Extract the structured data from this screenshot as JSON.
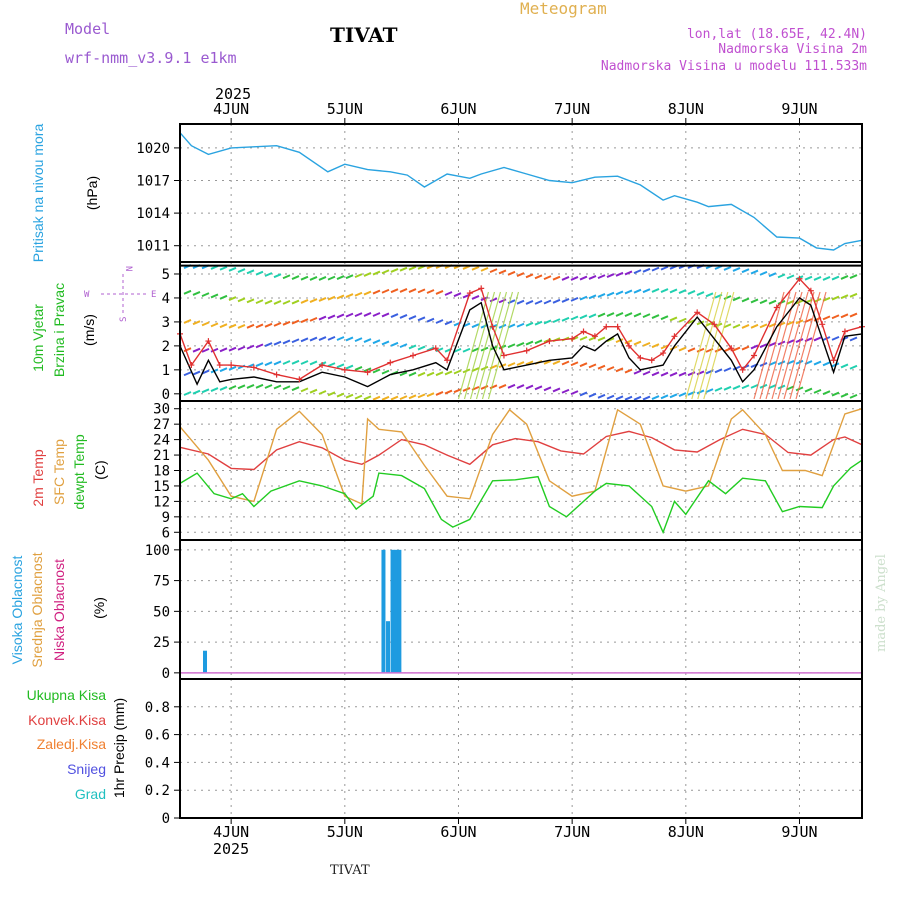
{
  "header": {
    "model_label": "Model",
    "model_name": "wrf-nmm_v3.9.1 e1km",
    "station": "TIVAT",
    "meteogram": "Meteogram",
    "lonlat": "lon,lat (18.65E, 42.4N)",
    "elevation": "Nadmorska Visina 2m",
    "model_elevation": "Nadmorska Visina u modelu 111.533m",
    "footer_station": "TIVAT",
    "watermark": "made by Angel"
  },
  "time_axis": {
    "year": "2025",
    "labels": [
      "4JUN",
      "5JUN",
      "6JUN",
      "7JUN",
      "8JUN",
      "9JUN"
    ],
    "start_day": 3.55,
    "end_day": 9.55
  },
  "colors": {
    "pressure": "#2aa3e0",
    "wind_speed": "#000000",
    "gust": "#e03030",
    "temp2m": "#e04040",
    "sfc_temp": "#e0a040",
    "dewpoint": "#22cc22",
    "high_cloud": "#1e9be0"
  },
  "chart_data": [
    {
      "type": "line",
      "panel": "pressure",
      "title_lines": [
        "Pritisak na nivou mora",
        "(hPa)"
      ],
      "ylim": [
        1009.5,
        1022.2
      ],
      "yticks": [
        "1020",
        "1017",
        "1014",
        "1011"
      ],
      "series": [
        {
          "values": [
            [
              3.55,
              1021.4
            ],
            [
              3.65,
              1020.2
            ],
            [
              3.8,
              1019.4
            ],
            [
              4.0,
              1020.0
            ],
            [
              4.2,
              1020.1
            ],
            [
              4.4,
              1020.2
            ],
            [
              4.6,
              1019.6
            ],
            [
              4.85,
              1017.8
            ],
            [
              5.0,
              1018.5
            ],
            [
              5.2,
              1018.0
            ],
            [
              5.4,
              1017.8
            ],
            [
              5.55,
              1017.5
            ],
            [
              5.7,
              1016.4
            ],
            [
              5.9,
              1017.6
            ],
            [
              6.1,
              1017.2
            ],
            [
              6.2,
              1017.6
            ],
            [
              6.4,
              1018.2
            ],
            [
              6.6,
              1017.6
            ],
            [
              6.8,
              1017.0
            ],
            [
              7.0,
              1016.8
            ],
            [
              7.2,
              1017.3
            ],
            [
              7.4,
              1017.4
            ],
            [
              7.6,
              1016.6
            ],
            [
              7.8,
              1015.2
            ],
            [
              7.9,
              1015.6
            ],
            [
              8.1,
              1015.0
            ],
            [
              8.2,
              1014.6
            ],
            [
              8.4,
              1014.8
            ],
            [
              8.6,
              1013.6
            ],
            [
              8.8,
              1011.8
            ],
            [
              9.0,
              1011.7
            ],
            [
              9.15,
              1010.8
            ],
            [
              9.3,
              1010.6
            ],
            [
              9.4,
              1011.2
            ],
            [
              9.55,
              1011.5
            ]
          ]
        }
      ]
    },
    {
      "type": "line",
      "panel": "wind",
      "title_lines": [
        "10m Vjetar",
        "Brzina i Pravac",
        "(m/s)"
      ],
      "compass": {
        "n": "N",
        "s": "S",
        "e": "E",
        "w": "W"
      },
      "ylim": [
        -0.3,
        5.5
      ],
      "yticks": [
        "5",
        "4",
        "3",
        "2",
        "1",
        "0"
      ],
      "series": [
        {
          "values": [
            [
              3.55,
              2.0
            ],
            [
              3.7,
              0.4
            ],
            [
              3.8,
              1.4
            ],
            [
              3.9,
              0.5
            ],
            [
              4.0,
              0.6
            ],
            [
              4.2,
              0.7
            ],
            [
              4.4,
              0.5
            ],
            [
              4.6,
              0.5
            ],
            [
              4.8,
              0.9
            ],
            [
              5.0,
              0.7
            ],
            [
              5.2,
              0.3
            ],
            [
              5.4,
              0.8
            ],
            [
              5.6,
              1.0
            ],
            [
              5.8,
              1.3
            ],
            [
              5.9,
              1.0
            ],
            [
              6.1,
              3.5
            ],
            [
              6.2,
              3.8
            ],
            [
              6.3,
              2.0
            ],
            [
              6.4,
              1.0
            ],
            [
              6.6,
              1.2
            ],
            [
              6.8,
              1.4
            ],
            [
              7.0,
              1.5
            ],
            [
              7.1,
              2.0
            ],
            [
              7.2,
              1.8
            ],
            [
              7.3,
              2.2
            ],
            [
              7.4,
              2.5
            ],
            [
              7.5,
              1.5
            ],
            [
              7.6,
              1.0
            ],
            [
              7.7,
              1.1
            ],
            [
              7.8,
              1.2
            ],
            [
              7.9,
              2.0
            ],
            [
              8.1,
              3.2
            ],
            [
              8.25,
              2.3
            ],
            [
              8.4,
              1.4
            ],
            [
              8.5,
              0.5
            ],
            [
              8.6,
              1.0
            ],
            [
              8.8,
              2.8
            ],
            [
              9.0,
              4.0
            ],
            [
              9.1,
              3.7
            ],
            [
              9.2,
              2.3
            ],
            [
              9.3,
              0.9
            ],
            [
              9.4,
              2.4
            ],
            [
              9.55,
              2.5
            ]
          ]
        },
        {
          "values": [
            [
              3.55,
              2.5
            ],
            [
              3.65,
              1.2
            ],
            [
              3.8,
              2.2
            ],
            [
              3.9,
              1.2
            ],
            [
              4.0,
              1.2
            ],
            [
              4.2,
              1.1
            ],
            [
              4.4,
              0.8
            ],
            [
              4.6,
              0.6
            ],
            [
              4.8,
              1.2
            ],
            [
              5.0,
              1.0
            ],
            [
              5.2,
              0.9
            ],
            [
              5.4,
              1.3
            ],
            [
              5.6,
              1.6
            ],
            [
              5.8,
              1.9
            ],
            [
              5.9,
              1.4
            ],
            [
              6.1,
              4.2
            ],
            [
              6.2,
              4.4
            ],
            [
              6.3,
              2.8
            ],
            [
              6.4,
              1.6
            ],
            [
              6.6,
              1.8
            ],
            [
              6.8,
              2.2
            ],
            [
              7.0,
              2.3
            ],
            [
              7.1,
              2.6
            ],
            [
              7.2,
              2.4
            ],
            [
              7.3,
              2.8
            ],
            [
              7.4,
              2.8
            ],
            [
              7.5,
              2.0
            ],
            [
              7.6,
              1.5
            ],
            [
              7.7,
              1.4
            ],
            [
              7.8,
              1.7
            ],
            [
              7.9,
              2.4
            ],
            [
              8.1,
              3.4
            ],
            [
              8.25,
              2.9
            ],
            [
              8.4,
              1.9
            ],
            [
              8.5,
              1.0
            ],
            [
              8.6,
              1.6
            ],
            [
              8.8,
              3.6
            ],
            [
              9.0,
              4.8
            ],
            [
              9.1,
              4.3
            ],
            [
              9.2,
              2.9
            ],
            [
              9.3,
              1.4
            ],
            [
              9.4,
              2.6
            ],
            [
              9.55,
              2.8
            ]
          ]
        }
      ]
    },
    {
      "type": "line",
      "panel": "temperature",
      "title_lines": [
        "2m Temp",
        "SFC Temp",
        "dewpt Temp",
        "(C)"
      ],
      "ylim": [
        4.5,
        31.5
      ],
      "yticks": [
        "30",
        "27",
        "24",
        "21",
        "18",
        "15",
        "12",
        "9",
        "6"
      ],
      "series": [
        {
          "values": [
            [
              3.55,
              22.5
            ],
            [
              3.8,
              21.2
            ],
            [
              4.0,
              18.4
            ],
            [
              4.2,
              18.2
            ],
            [
              4.4,
              22.0
            ],
            [
              4.6,
              23.6
            ],
            [
              4.8,
              22.4
            ],
            [
              5.0,
              20.0
            ],
            [
              5.15,
              19.2
            ],
            [
              5.3,
              21.0
            ],
            [
              5.5,
              24.0
            ],
            [
              5.7,
              23.0
            ],
            [
              5.9,
              21.0
            ],
            [
              6.1,
              19.2
            ],
            [
              6.3,
              23.0
            ],
            [
              6.5,
              24.2
            ],
            [
              6.7,
              23.6
            ],
            [
              6.9,
              21.8
            ],
            [
              7.1,
              21.2
            ],
            [
              7.3,
              24.6
            ],
            [
              7.5,
              25.6
            ],
            [
              7.7,
              24.4
            ],
            [
              7.9,
              22.0
            ],
            [
              8.1,
              21.6
            ],
            [
              8.3,
              24.0
            ],
            [
              8.5,
              26.0
            ],
            [
              8.7,
              25.0
            ],
            [
              8.9,
              21.5
            ],
            [
              9.1,
              21.0
            ],
            [
              9.3,
              24.0
            ],
            [
              9.4,
              24.5
            ],
            [
              9.55,
              23.0
            ]
          ]
        },
        {
          "values": [
            [
              3.55,
              26.5
            ],
            [
              3.8,
              20.0
            ],
            [
              4.0,
              13.0
            ],
            [
              4.2,
              12.0
            ],
            [
              4.4,
              26.0
            ],
            [
              4.6,
              29.5
            ],
            [
              4.8,
              25.0
            ],
            [
              5.0,
              13.0
            ],
            [
              5.15,
              11.5
            ],
            [
              5.2,
              28.0
            ],
            [
              5.3,
              26.0
            ],
            [
              5.5,
              25.5
            ],
            [
              5.7,
              19.0
            ],
            [
              5.9,
              13.0
            ],
            [
              6.1,
              12.5
            ],
            [
              6.3,
              25.0
            ],
            [
              6.45,
              29.8
            ],
            [
              6.6,
              27.0
            ],
            [
              6.8,
              16.0
            ],
            [
              7.0,
              13.0
            ],
            [
              7.2,
              14.0
            ],
            [
              7.4,
              29.8
            ],
            [
              7.6,
              27.0
            ],
            [
              7.8,
              15.0
            ],
            [
              8.0,
              14.0
            ],
            [
              8.2,
              15.0
            ],
            [
              8.4,
              28.0
            ],
            [
              8.5,
              29.8
            ],
            [
              8.7,
              25.0
            ],
            [
              8.85,
              18.0
            ],
            [
              9.05,
              18.0
            ],
            [
              9.2,
              17.0
            ],
            [
              9.4,
              29.0
            ],
            [
              9.55,
              30.0
            ]
          ]
        },
        {
          "values": [
            [
              3.55,
              15.5
            ],
            [
              3.7,
              17.5
            ],
            [
              3.85,
              13.5
            ],
            [
              4.0,
              12.5
            ],
            [
              4.1,
              13.5
            ],
            [
              4.2,
              11.0
            ],
            [
              4.35,
              14.0
            ],
            [
              4.6,
              16.0
            ],
            [
              4.8,
              15.0
            ],
            [
              5.0,
              13.5
            ],
            [
              5.1,
              10.5
            ],
            [
              5.25,
              13.0
            ],
            [
              5.3,
              17.5
            ],
            [
              5.5,
              17.0
            ],
            [
              5.7,
              14.5
            ],
            [
              5.85,
              8.5
            ],
            [
              5.95,
              7.0
            ],
            [
              6.1,
              8.5
            ],
            [
              6.3,
              16.0
            ],
            [
              6.5,
              16.2
            ],
            [
              6.7,
              16.8
            ],
            [
              6.8,
              11.0
            ],
            [
              6.95,
              9.0
            ],
            [
              7.2,
              14.0
            ],
            [
              7.3,
              15.5
            ],
            [
              7.5,
              15.0
            ],
            [
              7.7,
              11.0
            ],
            [
              7.8,
              6.0
            ],
            [
              7.9,
              12.0
            ],
            [
              8.0,
              9.5
            ],
            [
              8.2,
              16.0
            ],
            [
              8.35,
              13.5
            ],
            [
              8.5,
              16.5
            ],
            [
              8.7,
              16.0
            ],
            [
              8.85,
              10.0
            ],
            [
              9.0,
              11.0
            ],
            [
              9.2,
              10.8
            ],
            [
              9.3,
              15.0
            ],
            [
              9.45,
              18.5
            ],
            [
              9.55,
              20.0
            ]
          ]
        }
      ]
    },
    {
      "type": "bar",
      "panel": "cloud",
      "title_lines": [
        "Visoka Oblacnost",
        "Srednja Oblacnost",
        "Niska Oblacnost",
        "(%)"
      ],
      "ylim": [
        -5,
        108
      ],
      "yticks": [
        "100",
        "75",
        "50",
        "25",
        "0"
      ],
      "series": [
        {
          "values": [
            [
              3.77,
              18
            ],
            [
              5.34,
              100
            ],
            [
              5.38,
              42
            ],
            [
              5.42,
              100
            ],
            [
              5.45,
              100
            ],
            [
              5.48,
              100
            ]
          ]
        }
      ]
    },
    {
      "type": "line",
      "panel": "precip",
      "title_lines": [
        "1hr Precip (mm)"
      ],
      "legend": [
        "Ukupna Kisa",
        "Konvek.Kisa",
        "Zaledj.Kisa",
        "Snijeg",
        "Grad"
      ],
      "ylim": [
        0,
        1.0
      ],
      "yticks": [
        "0.8",
        "0.6",
        "0.4",
        "0.2",
        "0"
      ],
      "series": []
    }
  ]
}
